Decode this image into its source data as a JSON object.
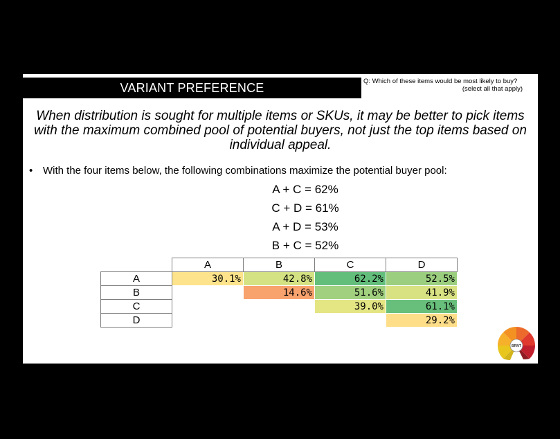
{
  "header": {
    "title": "VARIANT PREFERENCE",
    "question_line1": "Q:  Which of these items would be most likely to buy?",
    "question_line2": "(select all that apply)"
  },
  "intro": "When distribution is sought for multiple items or SKUs, it may be better to pick items with the maximum combined pool of potential buyers, not just the top items based on individual appeal.",
  "bullet": {
    "marker": "•",
    "text": "With the four items below, the following combinations maximize the potential buyer pool:"
  },
  "combinations": [
    "A + C = 62%",
    "C + D = 61%",
    "A + D = 53%",
    "B + C = 52%"
  ],
  "matrix": {
    "columns": [
      "A",
      "B",
      "C",
      "D"
    ],
    "rows": [
      {
        "label": "A",
        "cells": [
          {
            "value": "30.1%",
            "color": "#fde38b"
          },
          {
            "value": "42.8%",
            "color": "#d4e283"
          },
          {
            "value": "62.2%",
            "color": "#63be7b"
          },
          {
            "value": "52.5%",
            "color": "#9bcf7f"
          }
        ]
      },
      {
        "label": "B",
        "cells": [
          null,
          {
            "value": "14.6%",
            "color": "#f8a26e"
          },
          {
            "value": "51.6%",
            "color": "#a1d07f"
          },
          {
            "value": "41.9%",
            "color": "#d9e283"
          }
        ]
      },
      {
        "label": "C",
        "cells": [
          null,
          null,
          {
            "value": "39.0%",
            "color": "#e4e583"
          },
          {
            "value": "61.1%",
            "color": "#68bf7b"
          }
        ]
      },
      {
        "label": "D",
        "cells": [
          null,
          null,
          null,
          {
            "value": "29.2%",
            "color": "#fede89"
          }
        ]
      }
    ]
  },
  "colors": {
    "background": "#000000",
    "slide": "#ffffff",
    "header_bar": "#000000"
  },
  "logo": {
    "icon": "gauge-logo-icon",
    "label": "BRNT"
  }
}
